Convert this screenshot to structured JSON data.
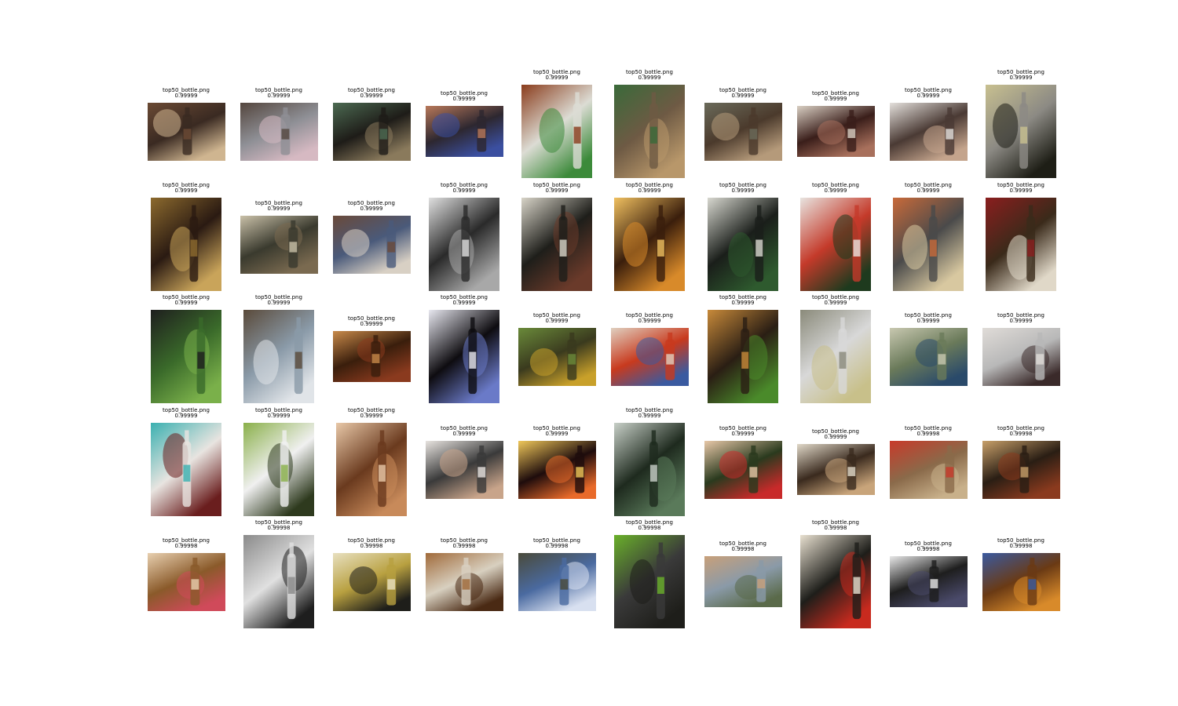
{
  "figure": {
    "caption_name": "top50_bottle.png",
    "columns": 10
  },
  "images": [
    {
      "score": "0.99999",
      "orient": "land",
      "colors": [
        "#3a2a22",
        "#cfb590",
        "#6b4a34"
      ]
    },
    {
      "score": "0.99999",
      "orient": "land",
      "colors": [
        "#8e8f95",
        "#d6b9c2",
        "#54463e"
      ]
    },
    {
      "score": "0.99999",
      "orient": "land",
      "colors": [
        "#1e1c18",
        "#8a7a5c",
        "#4c6a52"
      ]
    },
    {
      "score": "0.99999",
      "orient": "land-short",
      "colors": [
        "#2d2730",
        "#3b4fa0",
        "#b8785a"
      ]
    },
    {
      "score": "0.99999",
      "orient": "port",
      "colors": [
        "#dcdcd4",
        "#3c8a3a",
        "#8a3c1c"
      ]
    },
    {
      "score": "0.99999",
      "orient": "port",
      "colors": [
        "#6e5a44",
        "#b8976a",
        "#3a6a3a"
      ]
    },
    {
      "score": "0.99999",
      "orient": "land",
      "colors": [
        "#4b3a2c",
        "#b59a7a",
        "#6a6a5a"
      ]
    },
    {
      "score": "0.99999",
      "orient": "land-short",
      "colors": [
        "#3a1e1a",
        "#a8705c",
        "#d9cfc3"
      ]
    },
    {
      "score": "0.99999",
      "orient": "land",
      "colors": [
        "#4a3a34",
        "#c4a48c",
        "#e4e0dc"
      ]
    },
    {
      "score": "0.99999",
      "orient": "port",
      "colors": [
        "#8c8a84",
        "#1e1e16",
        "#c8c090"
      ]
    },
    {
      "score": "0.99999",
      "orient": "port",
      "colors": [
        "#2a1a12",
        "#c9a45a",
        "#8c6a2e"
      ]
    },
    {
      "score": "0.99999",
      "orient": "land",
      "colors": [
        "#3a3a2e",
        "#7a6a50",
        "#c9c0a8"
      ]
    },
    {
      "score": "0.99999",
      "orient": "land",
      "colors": [
        "#4a5a7a",
        "#d8d0c4",
        "#6a4a3a"
      ]
    },
    {
      "score": "0.99999",
      "orient": "port",
      "colors": [
        "#2a2a2a",
        "#a8a8a8",
        "#e0e0e0"
      ]
    },
    {
      "score": "0.99999",
      "orient": "port",
      "colors": [
        "#1e1e1a",
        "#6a3a2a",
        "#d8d4c8"
      ]
    },
    {
      "score": "0.99999",
      "orient": "port",
      "colors": [
        "#3a1e0c",
        "#d88a2a",
        "#f0c060"
      ]
    },
    {
      "score": "0.99999",
      "orient": "port",
      "colors": [
        "#1a1e1a",
        "#2e5a2e",
        "#d8d8d0"
      ]
    },
    {
      "score": "0.99999",
      "orient": "port",
      "colors": [
        "#c43a2a",
        "#1e3a1e",
        "#e8e4e0"
      ]
    },
    {
      "score": "0.99999",
      "orient": "port",
      "colors": [
        "#4a4a4a",
        "#d8c8a0",
        "#c86a3a"
      ]
    },
    {
      "score": "0.99999",
      "orient": "port",
      "colors": [
        "#3a2a1a",
        "#e0d8c8",
        "#8a1e1e"
      ]
    },
    {
      "score": "0.99999",
      "orient": "port",
      "colors": [
        "#3a6a2a",
        "#7ab04a",
        "#1e1e1e"
      ]
    },
    {
      "score": "0.99999",
      "orient": "port",
      "colors": [
        "#8a9aa8",
        "#e0e4e8",
        "#5a4a3a"
      ]
    },
    {
      "score": "0.99999",
      "orient": "land-short",
      "colors": [
        "#3a1e0c",
        "#8a3a1e",
        "#c88a4a"
      ]
    },
    {
      "score": "0.99999",
      "orient": "port",
      "colors": [
        "#0e0c10",
        "#6a7ac8",
        "#e8e8f0"
      ]
    },
    {
      "score": "0.99999",
      "orient": "land",
      "colors": [
        "#3a3a1e",
        "#c8a02a",
        "#6a8a3a"
      ]
    },
    {
      "score": "0.99999",
      "orient": "land",
      "colors": [
        "#c83a1e",
        "#3a5aa0",
        "#e0d0c0"
      ]
    },
    {
      "score": "0.99999",
      "orient": "port",
      "colors": [
        "#2a1e14",
        "#4a8a2a",
        "#c88a3a"
      ]
    },
    {
      "score": "0.99999",
      "orient": "port",
      "colors": [
        "#d8d8d8",
        "#c8c08a",
        "#8a8a7a"
      ]
    },
    {
      "score": "0.99999",
      "orient": "land",
      "colors": [
        "#6a7a5a",
        "#2a4a6a",
        "#c8c8b0"
      ]
    },
    {
      "score": "0.99999",
      "orient": "land",
      "colors": [
        "#b8b8b8",
        "#3a2a2a",
        "#e0dcd8"
      ]
    },
    {
      "score": "0.99999",
      "orient": "port",
      "colors": [
        "#e8e4e0",
        "#6a1e1e",
        "#3ab0b0"
      ]
    },
    {
      "score": "0.99999",
      "orient": "port",
      "colors": [
        "#f0f0f0",
        "#2e3a1e",
        "#8ab04a"
      ]
    },
    {
      "score": "0.99999",
      "orient": "port",
      "colors": [
        "#6a3a1e",
        "#c88a5a",
        "#e8c8a8"
      ]
    },
    {
      "score": "0.99999",
      "orient": "land",
      "colors": [
        "#3a3a3a",
        "#c8a48a",
        "#e8e4e0"
      ]
    },
    {
      "score": "0.99999",
      "orient": "land",
      "colors": [
        "#1e0c0c",
        "#e86a2a",
        "#f0c85a"
      ]
    },
    {
      "score": "0.99999",
      "orient": "port",
      "colors": [
        "#1e2a1e",
        "#5a7a5a",
        "#c8d0c8"
      ]
    },
    {
      "score": "0.99999",
      "orient": "land",
      "colors": [
        "#2a3a1e",
        "#c82a2a",
        "#e8c8a8"
      ]
    },
    {
      "score": "0.99999",
      "orient": "land-short",
      "colors": [
        "#3a2a1e",
        "#c8a47a",
        "#e0d8c8"
      ]
    },
    {
      "score": "0.99998",
      "orient": "land",
      "colors": [
        "#8a6a4a",
        "#c8b08a",
        "#c83a2a"
      ]
    },
    {
      "score": "0.99998",
      "orient": "land",
      "colors": [
        "#2a1e14",
        "#8a3a1e",
        "#c8a06a"
      ]
    },
    {
      "score": "0.99998",
      "orient": "land",
      "colors": [
        "#8a5a2a",
        "#d04a5a",
        "#e8d0b0"
      ]
    },
    {
      "score": "0.99998",
      "orient": "port",
      "colors": [
        "#e0e0e0",
        "#1e1e1e",
        "#8a8a8a"
      ]
    },
    {
      "score": "0.99998",
      "orient": "land",
      "colors": [
        "#b8a040",
        "#1e1e1a",
        "#e8e0c0"
      ]
    },
    {
      "score": "0.99998",
      "orient": "land",
      "colors": [
        "#d8d0c0",
        "#4a2a14",
        "#a06a3a"
      ]
    },
    {
      "score": "0.99998",
      "orient": "land",
      "colors": [
        "#4a6aa0",
        "#d8e0f0",
        "#4a4a3a"
      ]
    },
    {
      "score": "0.99998",
      "orient": "port",
      "colors": [
        "#3a3a3a",
        "#1e1e1a",
        "#6ab02a"
      ]
    },
    {
      "score": "0.99998",
      "orient": "land-short",
      "colors": [
        "#8a9aa8",
        "#5a6a4a",
        "#c8a07a"
      ]
    },
    {
      "score": "0.99998",
      "orient": "port",
      "colors": [
        "#1e1e1a",
        "#c82a1e",
        "#e8e0d0"
      ]
    },
    {
      "score": "0.99998",
      "orient": "land-short",
      "colors": [
        "#1e1e1e",
        "#4a4a6a",
        "#e8e8e8"
      ]
    },
    {
      "score": "0.99998",
      "orient": "land",
      "colors": [
        "#6a3a14",
        "#d88a2a",
        "#3a5aa0"
      ]
    }
  ]
}
